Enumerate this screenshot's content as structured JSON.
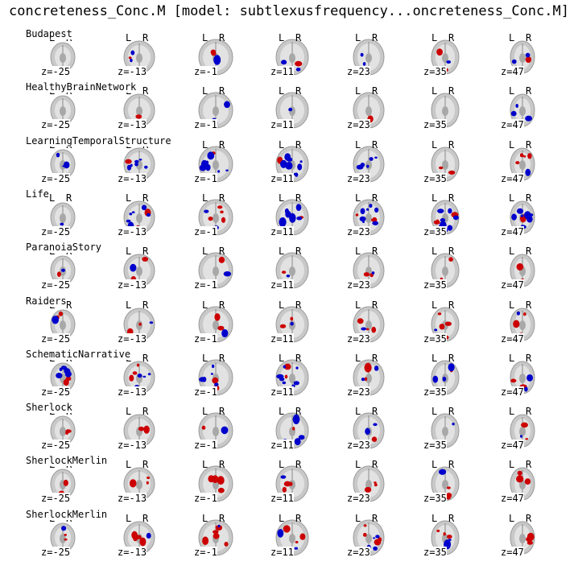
{
  "title": "concreteness_Conc.M [model: subtlexusfrequency...oncreteness_Conc.M]",
  "chart_data": {
    "type": "heatmap",
    "title": "concreteness_Conc.M [model: subtlexusfrequency...oncreteness_Conc.M]",
    "orientation_labels": {
      "left": "L",
      "right": "R"
    },
    "slice_labels": [
      "z=-25",
      "z=-13",
      "z=-1",
      "z=11",
      "z=23",
      "z=35",
      "z=47"
    ],
    "datasets": [
      "Budapest",
      "HealthyBrainNetwork",
      "LearningTemporalStructure",
      "Life",
      "ParanoiaStory",
      "Raiders",
      "SchematicNarrative",
      "Sherlock",
      "SherlockMerlin",
      "SherlockMerlin"
    ],
    "colors": {
      "positive": "#cc0000",
      "negative": "#0000cc",
      "anatomy": "#b8b8b8"
    }
  }
}
